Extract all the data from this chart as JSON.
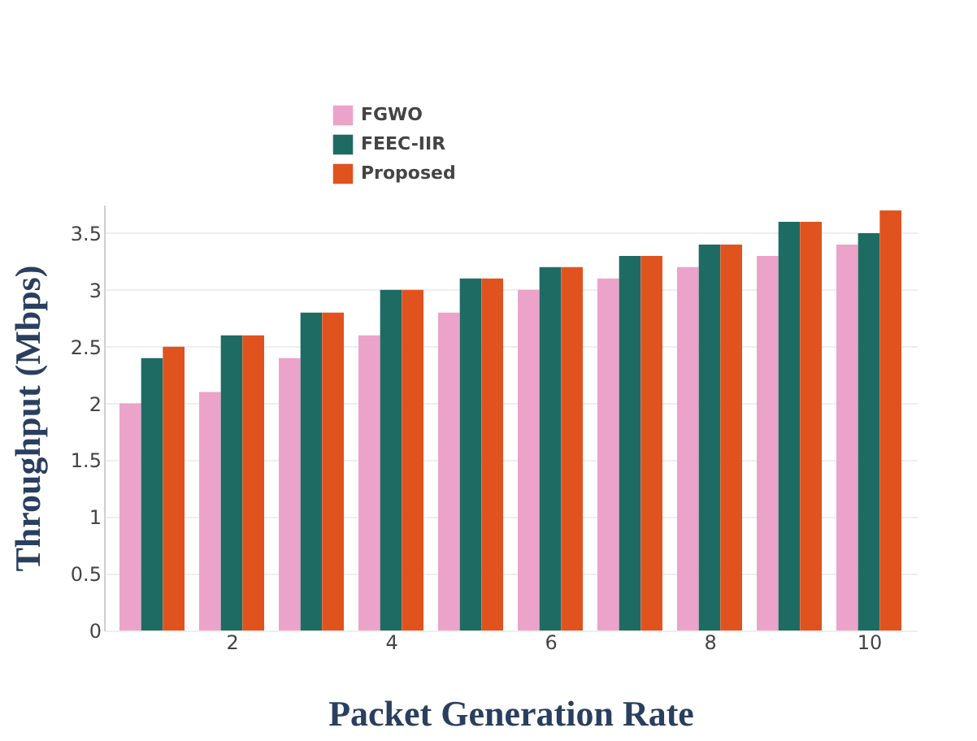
{
  "chart_data": {
    "type": "bar",
    "xlabel": "Packet Generation Rate",
    "ylabel": "Throughput (Mbps)",
    "x": [
      1,
      2,
      3,
      4,
      5,
      6,
      7,
      8,
      9,
      10
    ],
    "series": [
      {
        "name": "FGWO",
        "color": "#eba3c9",
        "values": [
          2.0,
          2.1,
          2.4,
          2.6,
          2.8,
          3.0,
          3.1,
          3.2,
          3.3,
          3.4
        ]
      },
      {
        "name": "FEEC-IIR",
        "color": "#1e6b63",
        "values": [
          2.4,
          2.6,
          2.8,
          3.0,
          3.1,
          3.2,
          3.3,
          3.4,
          3.6,
          3.5
        ]
      },
      {
        "name": "Proposed",
        "color": "#e0531f",
        "values": [
          2.5,
          2.6,
          2.8,
          3.0,
          3.1,
          3.2,
          3.3,
          3.4,
          3.6,
          3.7
        ]
      }
    ],
    "xlim": [
      0.5,
      10.5
    ],
    "xticks": [
      2,
      4,
      6,
      8,
      10
    ],
    "ylim": [
      0,
      3.75
    ],
    "yticks": [
      0,
      0.5,
      1,
      1.5,
      2,
      2.5,
      3,
      3.5
    ],
    "grid": "y",
    "legend": "top"
  }
}
